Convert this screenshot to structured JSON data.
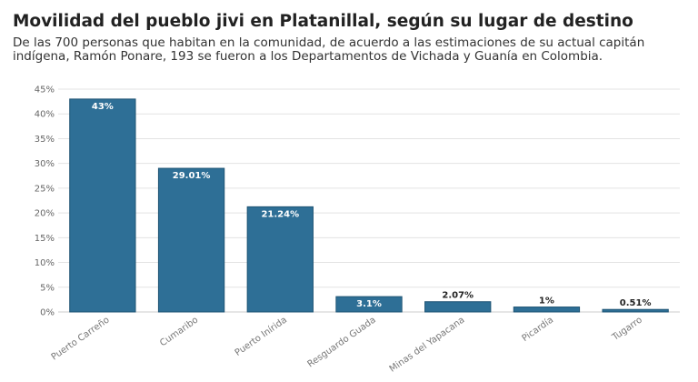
{
  "title": "Movilidad del pueblo jivi en Platanillal, según su lugar de destino",
  "subtitle": "De las 700 personas que habitan en la comunidad, de acuerdo a las estimaciones de su actual capitán indígena, Ramón Ponare, 193 se fueron a los Departamentos de Vichada y Guanía en Colombia.",
  "colors": {
    "bar": "#2e6f96",
    "bar_stroke": "#1f5474",
    "grid": "#e3e3e3",
    "label_inside": "#ffffff",
    "label_outside": "#222222"
  },
  "chart_data": {
    "type": "bar",
    "categories": [
      "Puerto Carreño",
      "Cumaribo",
      "Puerto Inírida",
      "Resguardo Guada",
      "Minas del Yapacana",
      "Picardía",
      "Tugarro"
    ],
    "values": [
      43,
      29.01,
      21.24,
      3.1,
      2.07,
      1,
      0.51
    ],
    "data_labels": [
      "43%",
      "29.01%",
      "21.24%",
      "3.1%",
      "2.07%",
      "1%",
      "0.51%"
    ],
    "y_ticks": [
      "0%",
      "5%",
      "10%",
      "15%",
      "20%",
      "25%",
      "30%",
      "35%",
      "40%",
      "45%"
    ],
    "ylim": [
      0,
      45
    ],
    "grid": true,
    "legend": "none"
  }
}
